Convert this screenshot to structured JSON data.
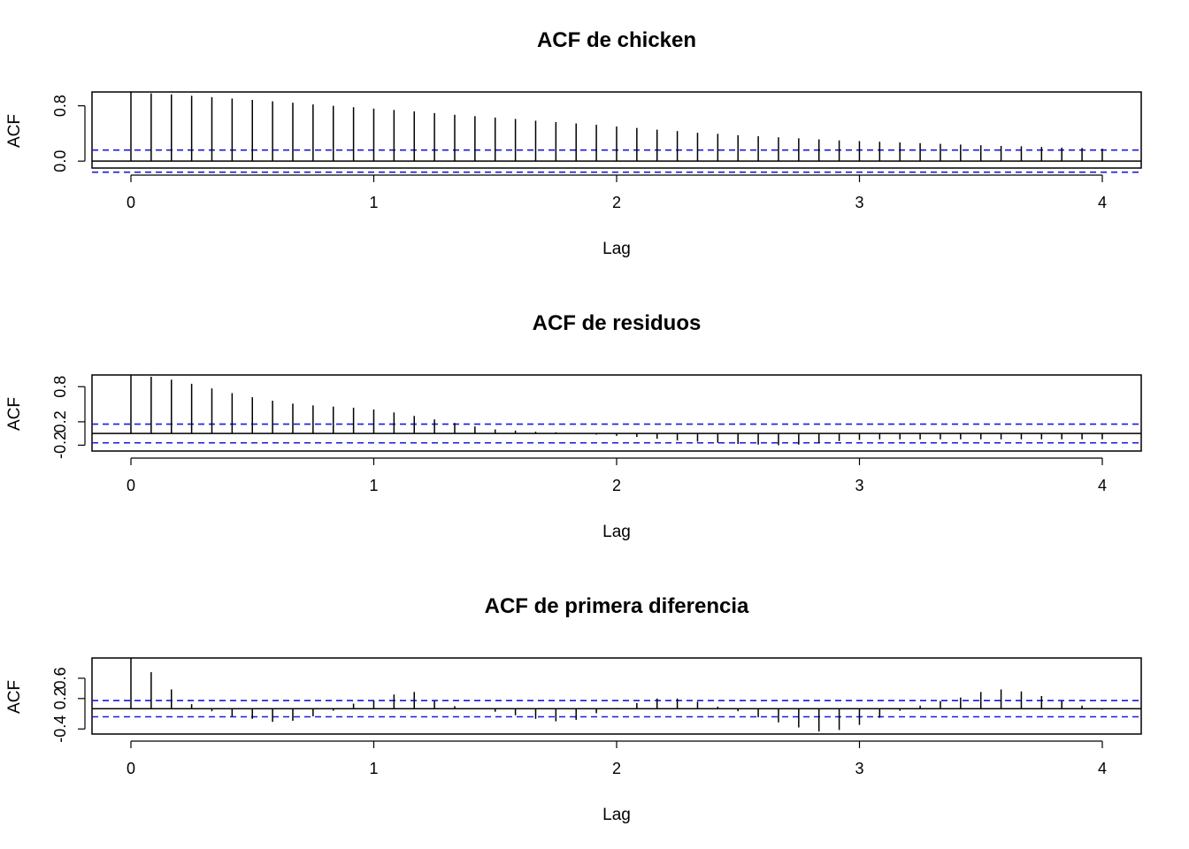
{
  "chart_data": [
    {
      "type": "bar",
      "subtype": "acf",
      "title": "ACF de chicken",
      "xlabel": "Lag",
      "ylabel": "ACF",
      "xlim": [
        0,
        4
      ],
      "ylim": [
        -0.1,
        1.0
      ],
      "xticks": [
        "0",
        "1",
        "2",
        "3",
        "4"
      ],
      "yticks": [
        "0.0",
        "0.8"
      ],
      "ci": 0.16,
      "lag_step": 0.08333,
      "acf": [
        1.0,
        0.98,
        0.965,
        0.945,
        0.925,
        0.905,
        0.885,
        0.865,
        0.845,
        0.82,
        0.8,
        0.78,
        0.76,
        0.74,
        0.72,
        0.695,
        0.67,
        0.65,
        0.63,
        0.61,
        0.585,
        0.565,
        0.545,
        0.525,
        0.5,
        0.48,
        0.455,
        0.435,
        0.41,
        0.395,
        0.375,
        0.36,
        0.345,
        0.33,
        0.315,
        0.3,
        0.29,
        0.28,
        0.27,
        0.26,
        0.25,
        0.24,
        0.23,
        0.22,
        0.215,
        0.205,
        0.195,
        0.19,
        0.18
      ]
    },
    {
      "type": "bar",
      "subtype": "acf",
      "title": "ACF de residuos",
      "xlabel": "Lag",
      "ylabel": "ACF",
      "xlim": [
        0,
        4
      ],
      "ylim": [
        -0.3,
        1.0
      ],
      "xticks": [
        "0",
        "1",
        "2",
        "3",
        "4"
      ],
      "yticks": [
        "-0.2",
        "0.2",
        "0.8"
      ],
      "ci": 0.16,
      "lag_step": 0.08333,
      "acf": [
        1.0,
        0.97,
        0.92,
        0.85,
        0.77,
        0.69,
        0.62,
        0.56,
        0.51,
        0.48,
        0.46,
        0.44,
        0.41,
        0.36,
        0.3,
        0.24,
        0.18,
        0.12,
        0.07,
        0.05,
        0.03,
        0.02,
        0.01,
        -0.02,
        -0.04,
        -0.06,
        -0.09,
        -0.12,
        -0.14,
        -0.16,
        -0.18,
        -0.19,
        -0.2,
        -0.19,
        -0.16,
        -0.13,
        -0.11,
        -0.1,
        -0.1,
        -0.1,
        -0.1,
        -0.1,
        -0.1,
        -0.1,
        -0.1,
        -0.1,
        -0.1,
        -0.1,
        -0.1
      ]
    },
    {
      "type": "bar",
      "subtype": "acf",
      "title": "ACF de primera diferencia",
      "xlabel": "Lag",
      "ylabel": "ACF",
      "xlim": [
        0,
        4
      ],
      "ylim": [
        -0.5,
        1.0
      ],
      "xticks": [
        "0",
        "1",
        "2",
        "3",
        "4"
      ],
      "yticks": [
        "-0.4",
        "0.2",
        "0.6"
      ],
      "ci": 0.16,
      "lag_step": 0.08333,
      "acf": [
        1.0,
        0.72,
        0.38,
        0.09,
        -0.05,
        -0.15,
        -0.2,
        -0.26,
        -0.24,
        -0.15,
        -0.04,
        0.1,
        0.16,
        0.28,
        0.33,
        0.16,
        0.05,
        0.0,
        -0.06,
        -0.13,
        -0.2,
        -0.25,
        -0.22,
        -0.09,
        0.01,
        0.11,
        0.2,
        0.2,
        0.14,
        0.04,
        -0.05,
        -0.17,
        -0.27,
        -0.37,
        -0.45,
        -0.42,
        -0.32,
        -0.18,
        -0.04,
        0.06,
        0.15,
        0.22,
        0.33,
        0.38,
        0.34,
        0.25,
        0.16,
        0.06,
        -0.02
      ]
    }
  ]
}
